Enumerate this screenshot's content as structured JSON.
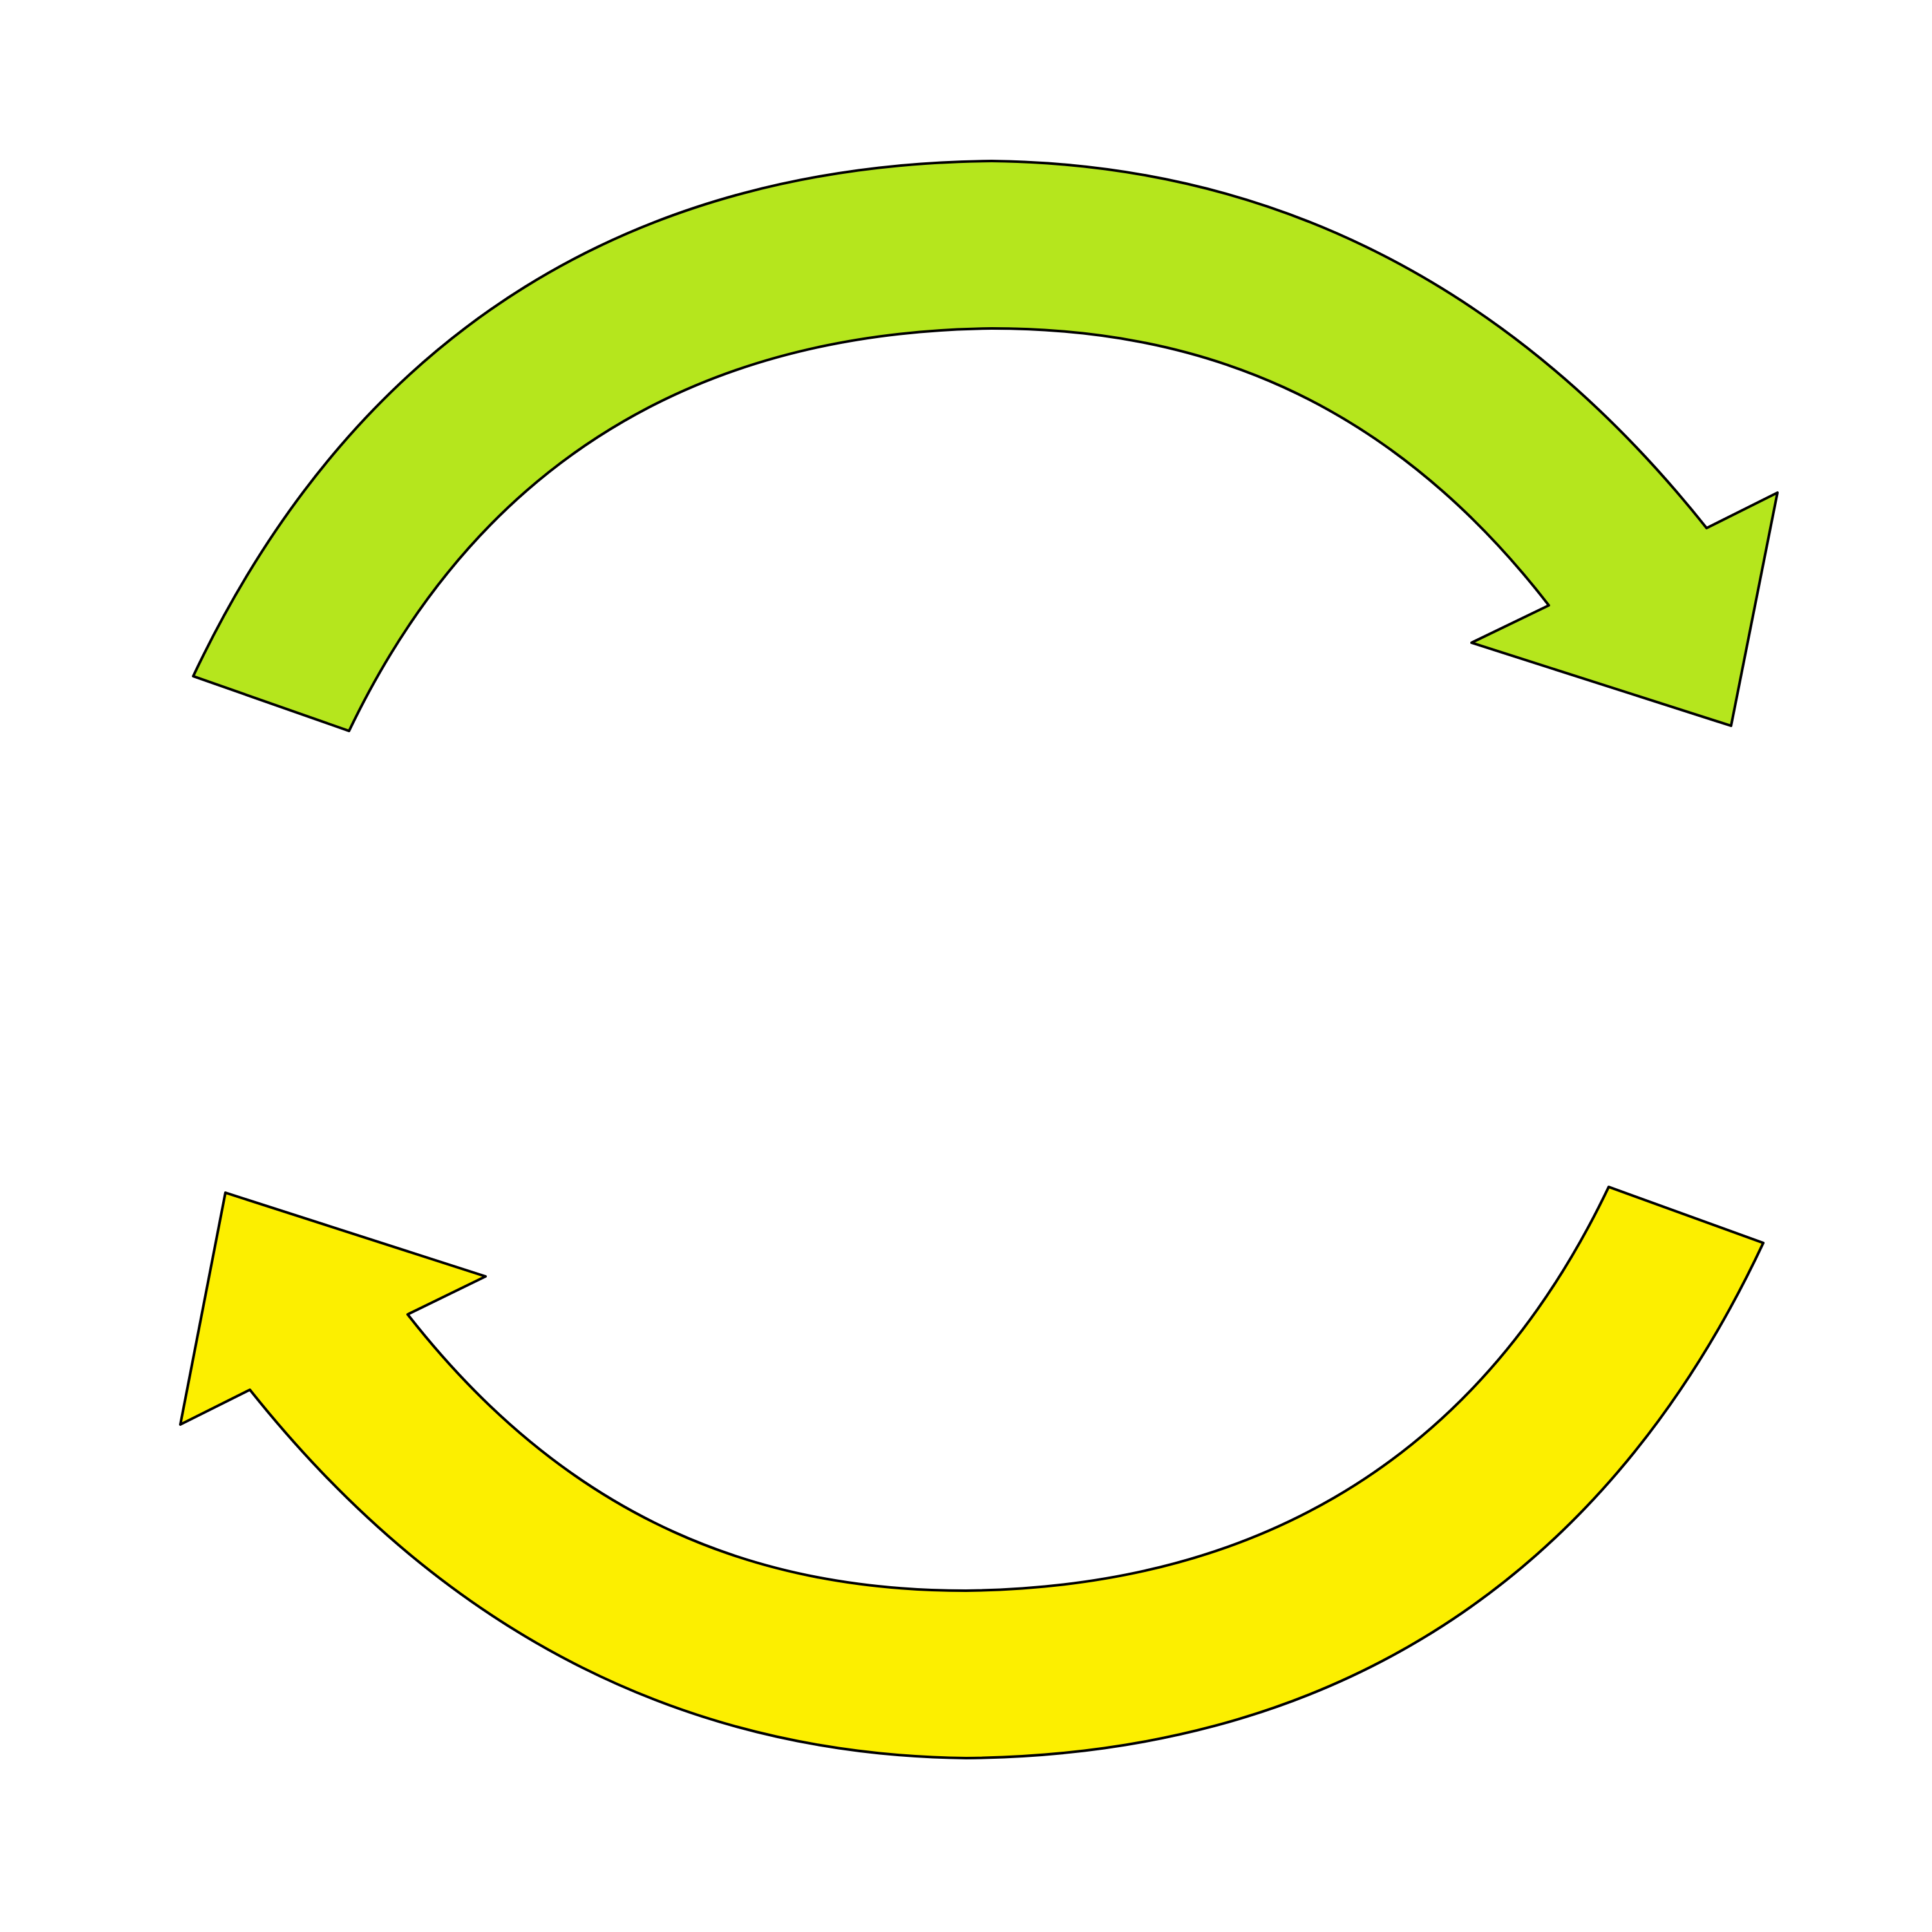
{
  "diagram": {
    "type": "cycle",
    "background": "#ffffff",
    "outline_color": "#000000",
    "arrows": [
      {
        "id": "top-arrow",
        "color": "#b5e61d",
        "direction": "clockwise",
        "icon": "curved-arrow-right-icon"
      },
      {
        "id": "bottom-arrow",
        "color": "#fcef00",
        "direction": "clockwise",
        "icon": "curved-arrow-left-icon"
      }
    ]
  }
}
